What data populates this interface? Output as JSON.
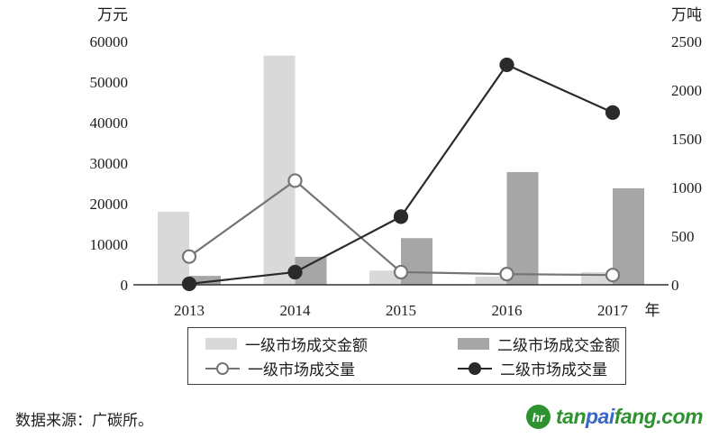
{
  "chart_data": {
    "type": "bar+line combo",
    "categories": [
      "2013",
      "2014",
      "2015",
      "2016",
      "2017"
    ],
    "x_axis_label": "年",
    "left_axis": {
      "title": "万元",
      "min": 0,
      "max": 60000,
      "step": 10000,
      "ticks": [
        0,
        10000,
        20000,
        30000,
        40000,
        50000,
        60000
      ]
    },
    "right_axis": {
      "title": "万吨",
      "min": 0,
      "max": 2500,
      "step": 500,
      "ticks": [
        0,
        500,
        1000,
        1500,
        2000,
        2500
      ]
    },
    "bar_series": [
      {
        "name": "一级市场成交金额",
        "axis": "left",
        "color": "#d9d9d9",
        "values": [
          18000,
          56500,
          3500,
          2000,
          3100
        ]
      },
      {
        "name": "二级市场成交金额",
        "axis": "left",
        "color": "#a6a6a6",
        "values": [
          2200,
          6900,
          11500,
          27800,
          23800
        ]
      }
    ],
    "line_series": [
      {
        "name": "一级市场成交量",
        "axis": "right",
        "color": "#757575",
        "marker": "open-circle",
        "values": [
          290,
          1070,
          130,
          110,
          100
        ]
      },
      {
        "name": "二级市场成交量",
        "axis": "right",
        "color": "#2a2a2a",
        "marker": "filled-circle",
        "values": [
          10,
          130,
          700,
          2260,
          1770
        ]
      }
    ],
    "legend_position": "bottom-box",
    "grid": false
  },
  "footer": {
    "source": "数据来源：广碳所。",
    "logo": {
      "icon_text": "hr",
      "part1": "tan",
      "part2": "pai",
      "part3": "fang.com"
    }
  },
  "colors": {
    "bar_light": "#d9d9d9",
    "bar_dark": "#a6a6a6",
    "line_gray": "#757575",
    "line_black": "#2a2a2a",
    "axis": "#333333",
    "logo_green": "#2e9230",
    "logo_blue": "#3a66c4"
  }
}
